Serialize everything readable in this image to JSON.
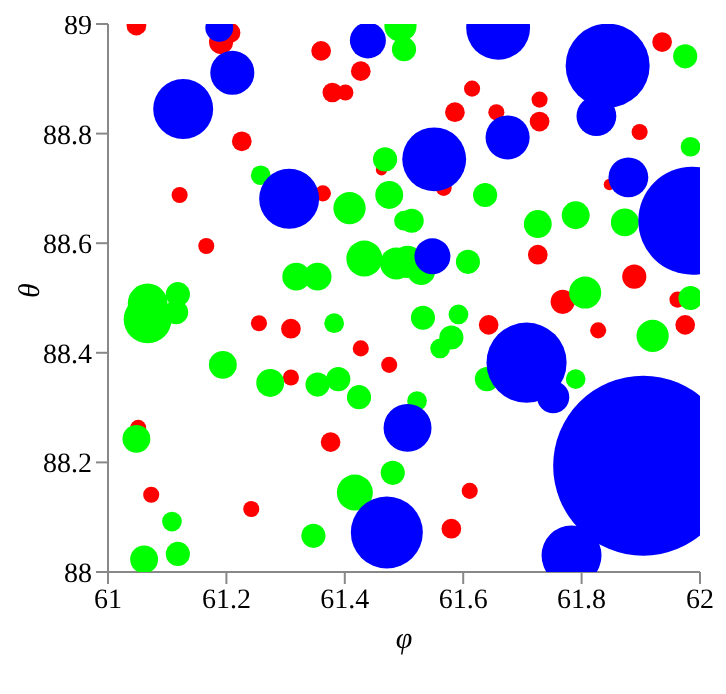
{
  "chart_data": {
    "type": "bubble",
    "xlabel": "φ",
    "ylabel": "θ",
    "xlim": [
      61,
      62
    ],
    "ylim": [
      88,
      89
    ],
    "xticks": [
      61,
      61.2,
      61.4,
      61.6,
      61.8,
      62
    ],
    "yticks": [
      88,
      88.2,
      88.4,
      88.6,
      88.8,
      89
    ],
    "grid": false,
    "legend": false,
    "series": [
      {
        "color": "#ff0000",
        "x": [
          61.048,
          61.191,
          61.207,
          61.36,
          61.427,
          61.379,
          61.401,
          61.226,
          61.121,
          61.363,
          61.166,
          61.462,
          61.936,
          61.615,
          61.586,
          61.656,
          61.729,
          61.729,
          61.898,
          61.567,
          61.847,
          61.726,
          61.889,
          61.768,
          61.962,
          61.255,
          61.309,
          61.427,
          61.475,
          61.309,
          61.051,
          61.376,
          61.073,
          61.242,
          61.643,
          61.828,
          61.975,
          61.611,
          61.58
        ],
        "values": [
          88.997,
          88.967,
          88.984,
          88.951,
          88.914,
          88.875,
          88.875,
          88.786,
          88.688,
          88.691,
          88.595,
          88.734,
          88.967,
          88.882,
          88.839,
          88.839,
          88.862,
          88.822,
          88.803,
          88.701,
          88.707,
          88.579,
          88.539,
          88.493,
          88.497,
          88.454,
          88.444,
          88.408,
          88.378,
          88.355,
          88.263,
          88.237,
          88.141,
          88.115,
          88.451,
          88.441,
          88.451,
          88.148,
          88.079
        ],
        "sizes": [
          0.012,
          0.018,
          0.012,
          0.012,
          0.012,
          0.012,
          0.008,
          0.012,
          0.008,
          0.008,
          0.008,
          0.004,
          0.012,
          0.008,
          0.012,
          0.008,
          0.008,
          0.012,
          0.008,
          0.008,
          0.004,
          0.012,
          0.018,
          0.018,
          0.008,
          0.008,
          0.012,
          0.008,
          0.008,
          0.008,
          0.008,
          0.012,
          0.008,
          0.008,
          0.012,
          0.008,
          0.012,
          0.008,
          0.012
        ]
      },
      {
        "color": "#00ff00",
        "x": [
          61.494,
          61.5,
          61.975,
          61.468,
          61.258,
          61.408,
          61.475,
          61.5,
          61.433,
          61.487,
          61.318,
          61.354,
          61.067,
          61.118,
          61.984,
          61.637,
          61.513,
          61.726,
          61.79,
          61.873,
          61.608,
          61.506,
          61.529,
          61.806,
          61.984,
          61.067,
          61.115,
          61.382,
          61.194,
          61.274,
          61.354,
          61.389,
          61.424,
          61.048,
          61.481,
          61.417,
          61.108,
          61.347,
          61.061,
          61.118,
          61.532,
          61.592,
          61.58,
          61.561,
          61.92,
          61.64,
          61.79,
          61.522
        ],
        "values": [
          88.997,
          88.954,
          88.941,
          88.753,
          88.724,
          88.664,
          88.688,
          88.641,
          88.572,
          88.563,
          88.539,
          88.539,
          88.49,
          88.507,
          88.776,
          88.688,
          88.641,
          88.635,
          88.651,
          88.638,
          88.566,
          88.566,
          88.549,
          88.51,
          88.5,
          88.461,
          88.474,
          88.454,
          88.378,
          88.345,
          88.342,
          88.352,
          88.319,
          88.243,
          88.181,
          88.145,
          88.092,
          88.066,
          88.023,
          88.033,
          88.464,
          88.47,
          88.428,
          88.408,
          88.431,
          88.352,
          88.352,
          88.312
        ],
        "sizes": [
          0.032,
          0.018,
          0.018,
          0.018,
          0.012,
          0.032,
          0.024,
          0.012,
          0.04,
          0.032,
          0.024,
          0.024,
          0.049,
          0.018,
          0.012,
          0.018,
          0.018,
          0.024,
          0.024,
          0.024,
          0.018,
          0.032,
          0.024,
          0.032,
          0.018,
          0.071,
          0.018,
          0.012,
          0.024,
          0.024,
          0.018,
          0.018,
          0.018,
          0.024,
          0.018,
          0.04,
          0.012,
          0.018,
          0.024,
          0.018,
          0.018,
          0.012,
          0.018,
          0.012,
          0.032,
          0.018,
          0.012,
          0.012
        ]
      },
      {
        "color": "#0000ff",
        "x": [
          61.904,
          61.844,
          61.987,
          61.551,
          61.127,
          61.306,
          61.21,
          61.675,
          61.825,
          61.879,
          61.659,
          61.439,
          61.188,
          61.548,
          61.707,
          61.752,
          61.506,
          61.471,
          61.783
        ],
        "values": [
          88.194,
          88.924,
          88.641,
          88.753,
          88.845,
          88.681,
          88.911,
          88.793,
          88.832,
          88.72,
          88.993,
          88.97,
          88.993,
          88.576,
          88.382,
          88.319,
          88.263,
          88.072,
          88.03
        ],
        "sizes": [
          1,
          0.218,
          0.36,
          0.126,
          0.111,
          0.111,
          0.06,
          0.06,
          0.049,
          0.049,
          0.126,
          0.04,
          0.024,
          0.04,
          0.198,
          0.032,
          0.071,
          0.16,
          0.111
        ]
      }
    ]
  }
}
